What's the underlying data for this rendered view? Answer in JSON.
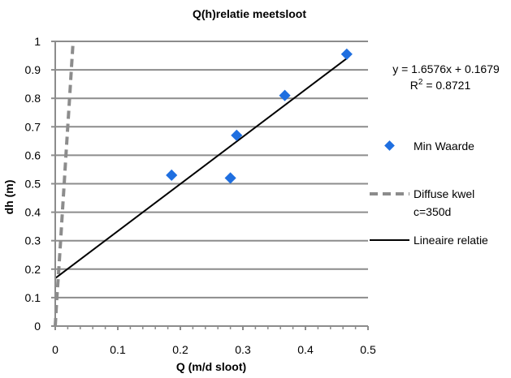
{
  "chart_data": {
    "type": "scatter",
    "title": "Q(h)relatie meetsloot",
    "xlabel": "Q (m/d sloot)",
    "ylabel": "dh (m)",
    "xlim": [
      0,
      0.5
    ],
    "ylim": [
      0,
      1
    ],
    "x_ticks": [
      "0",
      "0.1",
      "0.2",
      "0.3",
      "0.4",
      "0.5"
    ],
    "y_ticks": [
      "0",
      "0.1",
      "0.2",
      "0.3",
      "0.4",
      "0.5",
      "0.6",
      "0.7",
      "0.8",
      "0.9",
      "1"
    ],
    "grid": "horizontal",
    "legend_position": "right",
    "series": [
      {
        "name": "Min Waarde",
        "kind": "markers",
        "marker": "diamond",
        "color": "#1f6fe0",
        "x": [
          0.186,
          0.28,
          0.29,
          0.367,
          0.466
        ],
        "y": [
          0.53,
          0.52,
          0.67,
          0.81,
          0.955
        ]
      },
      {
        "name": "Diffuse kwel c=350d",
        "name_lines": [
          "Diffuse kwel",
          "c=350d"
        ],
        "kind": "line",
        "style": "dashed",
        "color": "#8c8c8c",
        "x": [
          0,
          0.0026,
          0.0057,
          0.0086,
          0.0114,
          0.0143,
          0.0171,
          0.02,
          0.0229,
          0.0257,
          0.0286
        ],
        "y": [
          0,
          0.1,
          0.2,
          0.3,
          0.4,
          0.5,
          0.6,
          0.7,
          0.8,
          0.9,
          1.0
        ]
      },
      {
        "name": "Lineaire relatie",
        "kind": "line",
        "style": "solid",
        "color": "#000000",
        "x": [
          0,
          0.466
        ],
        "y": [
          0.1679,
          0.94
        ]
      }
    ],
    "trendline_equation": "y = 1.6576x + 0.1679",
    "r_squared_label": "R",
    "r_squared_exponent": "2",
    "r_squared_value": " = 0.8721"
  }
}
